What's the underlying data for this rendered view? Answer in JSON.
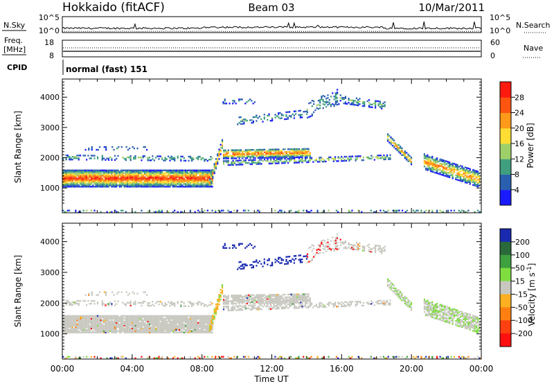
{
  "header": {
    "title": "Hokkaido (fitACF)",
    "beam": "Beam 03",
    "date": "10/Mar/2011"
  },
  "status_panels": {
    "nsky_label": "N.Sky",
    "nsearch_label": "N.Search",
    "noise_ticks": [
      "10^5",
      "10^0"
    ],
    "freq_label_1": "Freq.",
    "freq_label_2": "[MHz]",
    "freq_ticks": [
      "18",
      "8"
    ],
    "nave_label": "Nave",
    "nave_ticks": [
      "60",
      "0"
    ],
    "cpid_label": "CPID",
    "cpid_value": "normal (fast) 151"
  },
  "chart_data": [
    {
      "type": "heatmap",
      "title": "",
      "xlabel": "Time UT",
      "ylabel": "Slant Range [km]",
      "x_ticks": [
        "00:00",
        "04:00",
        "08:00",
        "12:00",
        "16:00",
        "20:00",
        "00:00"
      ],
      "y_ticks": [
        1000,
        2000,
        3000,
        4000
      ],
      "xlim_hours": [
        0,
        24
      ],
      "ylim_km": [
        180,
        4600
      ],
      "colorbar": {
        "label": "Power [dB]",
        "ticks": [
          4,
          8,
          12,
          16,
          20,
          24,
          28
        ],
        "colors": [
          "#1a1aff",
          "#2a5fb0",
          "#3f9f7f",
          "#9ed06a",
          "#ffdd33",
          "#ff9a1a",
          "#ff5510",
          "#ff1a10"
        ]
      }
    },
    {
      "type": "heatmap",
      "title": "",
      "xlabel": "Time UT",
      "ylabel": "Slant Range [km]",
      "x_ticks": [
        "00:00",
        "04:00",
        "08:00",
        "12:00",
        "16:00",
        "20:00",
        "00:00"
      ],
      "y_ticks": [
        1000,
        2000,
        3000,
        4000
      ],
      "xlim_hours": [
        0,
        24
      ],
      "ylim_km": [
        180,
        4600
      ],
      "colorbar": {
        "label": "Velocity [m s",
        "label_sup": "-1",
        "label_end": "]",
        "ticks": [
          "200",
          "100",
          "50",
          "15",
          "-15",
          "-50",
          "-100",
          "-200"
        ],
        "colors": [
          "#1a2ab0",
          "#2a6a3a",
          "#3fa040",
          "#7fdd40",
          "#c8c8c0",
          "#ffb020",
          "#ff8010",
          "#ff4010",
          "#ff1010"
        ]
      }
    }
  ]
}
